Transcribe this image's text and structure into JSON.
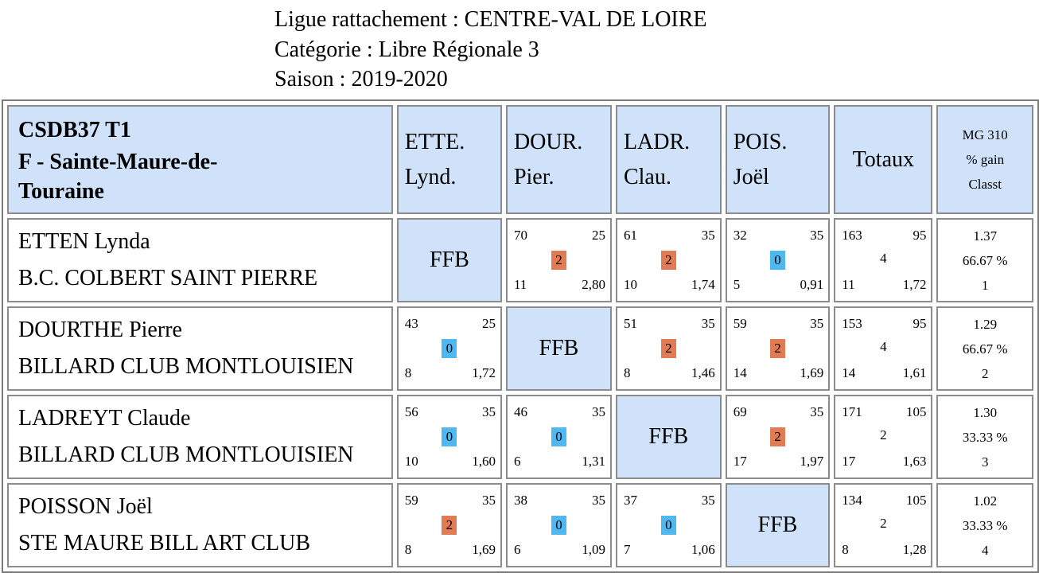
{
  "header": {
    "ligue": "Ligue rattachement : CENTRE-VAL DE LOIRE",
    "categorie": "Catégorie : Libre Régionale 3",
    "saison": "Saison : 2019-2020"
  },
  "table": {
    "team_line1": "CSDB37 T1",
    "team_line2": "F - Sainte-Maure-de-",
    "team_line3": "Touraine",
    "columns": [
      {
        "line1": "ETTE.",
        "line2": "Lynd."
      },
      {
        "line1": "DOUR.",
        "line2": "Pier."
      },
      {
        "line1": "LADR.",
        "line2": "Clau."
      },
      {
        "line1": "POIS.",
        "line2": "Joël"
      }
    ],
    "totals_label": "Totaux",
    "mg_line1": "MG 310",
    "mg_line2": "% gain",
    "mg_line3": "Classt",
    "ffb_label": "FFB",
    "rows": [
      {
        "name": "ETTEN Lynda",
        "club": "B.C. COLBERT SAINT PIERRE",
        "cells": [
          null,
          {
            "tl": "70",
            "tr": "25",
            "pts": "2",
            "bl": "11",
            "br": "2,80"
          },
          {
            "tl": "61",
            "tr": "35",
            "pts": "2",
            "bl": "10",
            "br": "1,74"
          },
          {
            "tl": "32",
            "tr": "35",
            "pts": "0",
            "bl": "5",
            "br": "0,91"
          }
        ],
        "totals": {
          "tl": "163",
          "tr": "95",
          "mid": "4",
          "bl": "11",
          "br": "1,72"
        },
        "mg": {
          "avg": "1.37",
          "pct": "66.67 %",
          "rank": "1"
        }
      },
      {
        "name": "DOURTHE Pierre",
        "club": "BILLARD CLUB MONTLOUISIEN",
        "cells": [
          {
            "tl": "43",
            "tr": "25",
            "pts": "0",
            "bl": "8",
            "br": "1,72"
          },
          null,
          {
            "tl": "51",
            "tr": "35",
            "pts": "2",
            "bl": "8",
            "br": "1,46"
          },
          {
            "tl": "59",
            "tr": "35",
            "pts": "2",
            "bl": "14",
            "br": "1,69"
          }
        ],
        "totals": {
          "tl": "153",
          "tr": "95",
          "mid": "4",
          "bl": "14",
          "br": "1,61"
        },
        "mg": {
          "avg": "1.29",
          "pct": "66.67 %",
          "rank": "2"
        }
      },
      {
        "name": "LADREYT Claude",
        "club": "BILLARD CLUB MONTLOUISIEN",
        "cells": [
          {
            "tl": "56",
            "tr": "35",
            "pts": "0",
            "bl": "10",
            "br": "1,60"
          },
          {
            "tl": "46",
            "tr": "35",
            "pts": "0",
            "bl": "6",
            "br": "1,31"
          },
          null,
          {
            "tl": "69",
            "tr": "35",
            "pts": "2",
            "bl": "17",
            "br": "1,97"
          }
        ],
        "totals": {
          "tl": "171",
          "tr": "105",
          "mid": "2",
          "bl": "17",
          "br": "1,63"
        },
        "mg": {
          "avg": "1.30",
          "pct": "33.33 %",
          "rank": "3"
        }
      },
      {
        "name": "POISSON Joël",
        "club": "STE MAURE BILL ART CLUB",
        "cells": [
          {
            "tl": "59",
            "tr": "35",
            "pts": "2",
            "bl": "8",
            "br": "1,69"
          },
          {
            "tl": "38",
            "tr": "35",
            "pts": "0",
            "bl": "6",
            "br": "1,09"
          },
          {
            "tl": "37",
            "tr": "35",
            "pts": "0",
            "bl": "7",
            "br": "1,06"
          },
          null
        ],
        "totals": {
          "tl": "134",
          "tr": "105",
          "mid": "2",
          "bl": "8",
          "br": "1,28"
        },
        "mg": {
          "avg": "1.02",
          "pct": "33.33 %",
          "rank": "4"
        }
      }
    ]
  },
  "colors": {
    "header_bg": "#cfe2fa",
    "win_badge": "#e07b53",
    "loss_badge": "#4fb8f0"
  }
}
